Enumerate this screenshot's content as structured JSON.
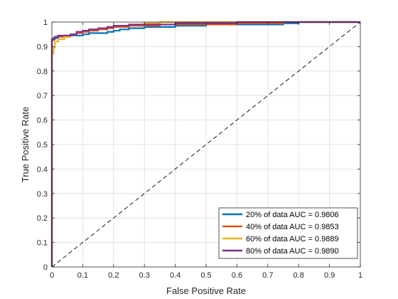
{
  "chart_data": {
    "type": "line",
    "title": "",
    "xlabel": "False Positive Rate",
    "ylabel": "True Positive Rate",
    "xlim": [
      0,
      1
    ],
    "ylim": [
      0,
      1
    ],
    "xticks": [
      "0",
      "0.1",
      "0.2",
      "0.3",
      "0.4",
      "0.5",
      "0.6",
      "0.7",
      "0.8",
      "0.9",
      "1"
    ],
    "yticks": [
      "0",
      "0.1",
      "0.2",
      "0.3",
      "0.4",
      "0.5",
      "0.6",
      "0.7",
      "0.8",
      "0.9",
      "1"
    ],
    "grid": true,
    "legend_position": "bottom-right",
    "reference_line": {
      "x": [
        0,
        1
      ],
      "y": [
        0,
        1
      ],
      "style": "dashed",
      "color": "#000000"
    },
    "series": [
      {
        "name": "20% of data AUC = 0.9806",
        "color": "#0072BD",
        "x": [
          0,
          0,
          0.005,
          0.01,
          0.02,
          0.04,
          0.06,
          0.08,
          0.1,
          0.12,
          0.15,
          0.18,
          0.2,
          0.22,
          0.25,
          0.28,
          0.3,
          0.35,
          0.4,
          0.45,
          0.5,
          0.55,
          0.6,
          0.65,
          0.7,
          0.75,
          0.8,
          1.0
        ],
        "y": [
          0,
          0.925,
          0.93,
          0.935,
          0.94,
          0.94,
          0.945,
          0.945,
          0.95,
          0.955,
          0.955,
          0.96,
          0.965,
          0.97,
          0.975,
          0.975,
          0.98,
          0.98,
          0.985,
          0.985,
          0.99,
          0.99,
          0.99,
          0.99,
          0.99,
          0.995,
          1.0,
          1.0
        ]
      },
      {
        "name": "40% of data AUC = 0.9853",
        "color": "#D95319",
        "x": [
          0,
          0,
          0.005,
          0.01,
          0.02,
          0.04,
          0.06,
          0.08,
          0.1,
          0.12,
          0.15,
          0.18,
          0.2,
          0.25,
          0.3,
          0.35,
          0.4,
          0.5,
          0.6,
          0.7,
          0.75,
          1.0
        ],
        "y": [
          0,
          0.925,
          0.935,
          0.94,
          0.94,
          0.945,
          0.95,
          0.955,
          0.96,
          0.965,
          0.97,
          0.975,
          0.98,
          0.985,
          0.985,
          0.99,
          0.99,
          0.99,
          0.995,
          0.995,
          1.0,
          1.0
        ]
      },
      {
        "name": "60% of data AUC = 0.9889",
        "color": "#EDB120",
        "x": [
          0,
          0,
          0.005,
          0.005,
          0.01,
          0.01,
          0.02,
          0.04,
          0.06,
          0.08,
          0.1,
          0.12,
          0.15,
          0.18,
          0.2,
          0.25,
          0.3,
          0.35,
          0.4,
          0.5,
          0.6,
          0.7,
          1.0
        ],
        "y": [
          0,
          0.87,
          0.87,
          0.895,
          0.9,
          0.92,
          0.93,
          0.94,
          0.95,
          0.96,
          0.965,
          0.97,
          0.975,
          0.98,
          0.985,
          0.99,
          0.995,
          1.0,
          1.0,
          1.0,
          1.0,
          1.0,
          1.0
        ]
      },
      {
        "name": "80% of data AUC = 0.9890",
        "color": "#7E2F8E",
        "x": [
          0,
          0,
          0.005,
          0.01,
          0.02,
          0.04,
          0.06,
          0.08,
          0.1,
          0.12,
          0.15,
          0.18,
          0.2,
          0.25,
          0.3,
          0.4,
          0.5,
          0.6,
          0.7,
          1.0
        ],
        "y": [
          0,
          0.93,
          0.935,
          0.94,
          0.945,
          0.945,
          0.95,
          0.96,
          0.965,
          0.97,
          0.975,
          0.98,
          0.985,
          0.99,
          0.99,
          0.995,
          0.995,
          1.0,
          1.0,
          1.0
        ]
      }
    ]
  }
}
